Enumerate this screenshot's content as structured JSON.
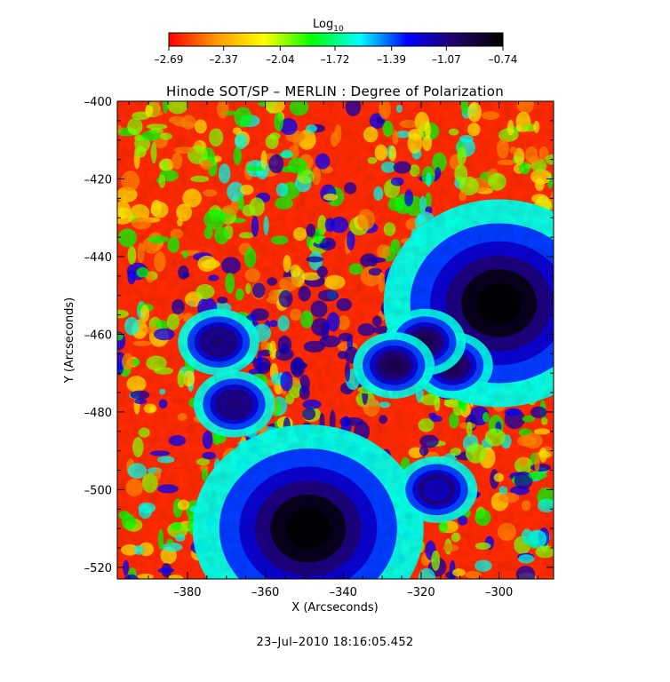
{
  "chart_data": {
    "type": "heatmap",
    "title": "Hinode SOT/SP – MERLIN : Degree of Polarization",
    "xlabel": "X (Arcseconds)",
    "ylabel": "Y (Arcseconds)",
    "xlim": [
      -398,
      -286
    ],
    "ylim": [
      -523,
      -400
    ],
    "x_ticks": [
      -380,
      -360,
      -340,
      -320,
      -300
    ],
    "y_ticks": [
      -400,
      -420,
      -440,
      -460,
      -480,
      -500,
      -520
    ],
    "x_tick_labels": [
      "–380",
      "–360",
      "–340",
      "–320",
      "–300"
    ],
    "y_tick_labels": [
      "–400",
      "–420",
      "–440",
      "–460",
      "–480",
      "–500",
      "–520"
    ],
    "colorbar": {
      "label_base": "Log",
      "label_sub": "10",
      "range": [
        -2.69,
        -0.74
      ],
      "ticks": [
        -2.69,
        -2.37,
        -2.04,
        -1.72,
        -1.39,
        -1.07,
        -0.74
      ],
      "tick_labels": [
        "–2.69",
        "–2.37",
        "–2.04",
        "–1.72",
        "–1.39",
        "–1.07",
        "–0.74"
      ],
      "colormap": [
        "#ff0000",
        "#ff9900",
        "#ffff00",
        "#00ff00",
        "#00ffff",
        "#0000ff",
        "#220066",
        "#000000"
      ]
    },
    "features": [
      {
        "kind": "sunspot",
        "x": -349,
        "y": -510,
        "value": -0.8
      },
      {
        "kind": "sunspot",
        "x": -300,
        "y": -452,
        "value": -0.8
      },
      {
        "kind": "pore",
        "x": -312,
        "y": -468,
        "value": -1.0
      },
      {
        "kind": "pore",
        "x": -319,
        "y": -462,
        "value": -1.0
      },
      {
        "kind": "pore",
        "x": -327,
        "y": -468,
        "value": -1.0
      },
      {
        "kind": "pore",
        "x": -316,
        "y": -500,
        "value": -1.2
      },
      {
        "kind": "pore",
        "x": -368,
        "y": -478,
        "value": -1.1
      },
      {
        "kind": "pore",
        "x": -372,
        "y": -462,
        "value": -1.1
      }
    ]
  },
  "timestamp": "23–Jul–2010  18:16:05.452"
}
